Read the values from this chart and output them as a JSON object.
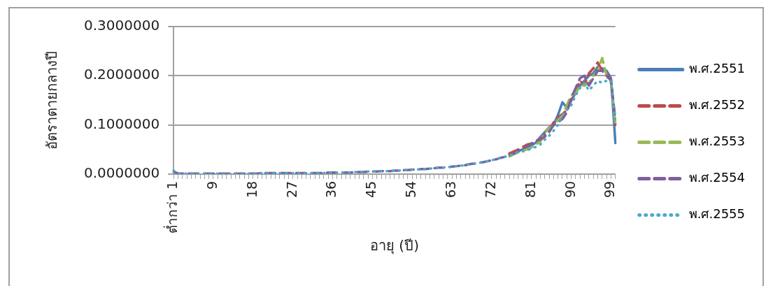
{
  "chart_data": {
    "type": "line",
    "ylabel": "อัตราตายกลางปี",
    "xlabel": "อายุ (ปี)",
    "categories": [
      "ต่ำกว่า 1",
      null,
      null,
      null,
      null,
      null,
      null,
      null,
      null,
      "9",
      null,
      null,
      null,
      null,
      null,
      null,
      null,
      null,
      "18",
      null,
      null,
      null,
      null,
      null,
      null,
      null,
      null,
      "27",
      null,
      null,
      null,
      null,
      null,
      null,
      null,
      null,
      "36",
      null,
      null,
      null,
      null,
      null,
      null,
      null,
      null,
      "45",
      null,
      null,
      null,
      null,
      null,
      null,
      null,
      null,
      "54",
      null,
      null,
      null,
      null,
      null,
      null,
      null,
      null,
      "63",
      null,
      null,
      null,
      null,
      null,
      null,
      null,
      null,
      "72",
      null,
      null,
      null,
      null,
      null,
      null,
      null,
      null,
      "81",
      null,
      null,
      null,
      null,
      null,
      null,
      null,
      null,
      "90",
      null,
      null,
      null,
      null,
      null,
      null,
      null,
      null,
      "99",
      null
    ],
    "series": [
      {
        "name": "พ.ศ.2551",
        "color": "#4a7ebb",
        "line_style": "solid",
        "values": [
          null,
          null,
          null,
          null,
          null,
          null,
          null,
          null,
          null,
          null,
          null,
          null,
          null,
          null,
          null,
          null,
          null,
          null,
          null,
          null,
          null,
          null,
          null,
          null,
          null,
          null,
          null,
          null,
          null,
          null,
          null,
          null,
          null,
          null,
          null,
          null,
          null,
          null,
          null,
          null,
          null,
          null,
          null,
          null,
          null,
          null,
          null,
          null,
          null,
          null,
          null,
          null,
          null,
          null,
          null,
          null,
          null,
          null,
          null,
          null,
          null,
          null,
          null,
          null,
          null,
          null,
          null,
          null,
          null,
          null,
          null,
          null,
          null,
          null,
          null,
          null,
          0.04,
          0.044,
          0.047,
          0.05,
          0.054,
          0.058,
          0.064,
          0.075,
          0.085,
          0.095,
          0.1,
          0.12,
          0.146,
          0.135,
          0.15,
          0.165,
          0.18,
          0.19,
          0.2,
          0.205,
          0.218,
          0.215,
          0.21,
          0.195,
          0.063
        ]
      },
      {
        "name": "พ.ศ.2552",
        "color": "#be4b48",
        "line_style": "dashed",
        "values": [
          null,
          null,
          null,
          null,
          null,
          null,
          null,
          null,
          null,
          null,
          null,
          null,
          null,
          null,
          null,
          null,
          null,
          null,
          null,
          null,
          null,
          null,
          null,
          null,
          null,
          null,
          null,
          null,
          null,
          null,
          null,
          null,
          null,
          null,
          null,
          null,
          null,
          null,
          null,
          null,
          null,
          null,
          null,
          null,
          null,
          null,
          null,
          null,
          null,
          null,
          null,
          null,
          null,
          null,
          null,
          null,
          null,
          null,
          null,
          null,
          null,
          null,
          null,
          null,
          null,
          null,
          null,
          null,
          null,
          null,
          null,
          null,
          null,
          null,
          null,
          null,
          0.042,
          0.046,
          0.05,
          0.055,
          0.06,
          0.062,
          0.066,
          0.072,
          0.08,
          0.09,
          0.105,
          0.115,
          0.122,
          0.13,
          0.15,
          0.17,
          0.19,
          0.18,
          0.205,
          0.215,
          0.227,
          0.21,
          0.205,
          0.19,
          0.1
        ]
      },
      {
        "name": "พ.ศ.2553",
        "color": "#98b954",
        "line_style": "dashed",
        "values": [
          null,
          null,
          null,
          null,
          null,
          null,
          null,
          null,
          null,
          null,
          null,
          null,
          null,
          null,
          null,
          null,
          null,
          null,
          null,
          null,
          null,
          null,
          null,
          null,
          null,
          null,
          null,
          null,
          null,
          null,
          null,
          null,
          null,
          null,
          null,
          null,
          null,
          null,
          null,
          null,
          null,
          null,
          null,
          null,
          null,
          null,
          null,
          null,
          null,
          null,
          null,
          null,
          null,
          null,
          null,
          null,
          null,
          null,
          null,
          null,
          null,
          null,
          null,
          null,
          null,
          null,
          null,
          null,
          null,
          null,
          null,
          null,
          null,
          null,
          null,
          null,
          0.036,
          0.04,
          0.044,
          0.048,
          0.05,
          0.054,
          0.06,
          0.066,
          0.083,
          0.094,
          0.098,
          0.11,
          0.118,
          0.14,
          0.16,
          0.165,
          0.18,
          0.18,
          0.185,
          0.2,
          0.21,
          0.236,
          0.2,
          0.185,
          0.1
        ]
      },
      {
        "name": "พ.ศ.2554",
        "color": "#7d60a0",
        "line_style": "dashed",
        "values": [
          0.005,
          0.001,
          0.001,
          0.001,
          0.001,
          0.001,
          0.001,
          0.001,
          0.001,
          0.001,
          0.001,
          0.001,
          0.001,
          0.001,
          0.001,
          0.001,
          0.001,
          0.001,
          0.001,
          0.001,
          0.002,
          0.002,
          0.002,
          0.002,
          0.002,
          0.002,
          0.002,
          0.002,
          0.002,
          0.002,
          0.002,
          0.002,
          0.002,
          0.002,
          0.002,
          0.003,
          0.003,
          0.003,
          0.003,
          0.003,
          0.003,
          0.004,
          0.004,
          0.004,
          0.005,
          0.005,
          0.005,
          0.006,
          0.006,
          0.006,
          0.007,
          0.007,
          0.008,
          0.008,
          0.009,
          0.009,
          0.01,
          0.01,
          0.011,
          0.012,
          0.013,
          0.013,
          0.014,
          0.015,
          0.016,
          0.017,
          0.018,
          0.02,
          0.021,
          0.023,
          0.024,
          0.026,
          0.028,
          0.03,
          0.033,
          0.035,
          0.038,
          0.042,
          0.046,
          0.052,
          0.056,
          0.062,
          0.068,
          0.07,
          0.076,
          0.085,
          0.1,
          0.105,
          0.112,
          0.125,
          0.155,
          0.175,
          0.195,
          0.2,
          0.18,
          0.195,
          0.21,
          0.21,
          0.2,
          0.19,
          0.11
        ]
      },
      {
        "name": "พ.ศ.2555",
        "color": "#4bacc6",
        "line_style": "dotted",
        "values": [
          0.007,
          0.001,
          0.001,
          0.001,
          0.001,
          0.001,
          0.001,
          0.001,
          0.001,
          0.001,
          0.001,
          0.001,
          0.001,
          0.001,
          0.001,
          0.001,
          0.001,
          0.001,
          0.001,
          0.001,
          0.002,
          0.002,
          0.002,
          0.002,
          0.002,
          0.002,
          0.002,
          0.002,
          0.002,
          0.002,
          0.002,
          0.002,
          0.002,
          0.002,
          0.002,
          0.003,
          0.003,
          0.003,
          0.003,
          0.003,
          0.003,
          0.004,
          0.004,
          0.004,
          0.005,
          0.005,
          0.005,
          0.006,
          0.006,
          0.006,
          0.007,
          0.007,
          0.008,
          0.008,
          0.009,
          0.009,
          0.01,
          0.01,
          0.011,
          0.012,
          0.013,
          0.013,
          0.014,
          0.015,
          0.016,
          0.017,
          0.018,
          0.02,
          0.021,
          0.023,
          0.024,
          0.026,
          0.028,
          0.03,
          0.033,
          0.035,
          0.038,
          0.041,
          0.045,
          0.046,
          0.048,
          0.052,
          0.055,
          0.06,
          0.07,
          0.078,
          0.088,
          0.1,
          0.12,
          0.13,
          0.14,
          0.16,
          0.175,
          0.185,
          0.17,
          0.18,
          0.19,
          0.185,
          0.19,
          0.19,
          0.105
        ]
      }
    ],
    "ylim": [
      0,
      0.3
    ],
    "yticks": [
      {
        "value": 0,
        "label": "0.0000000"
      },
      {
        "value": 0.1,
        "label": "0.1000000"
      },
      {
        "value": 0.2,
        "label": "0.2000000"
      },
      {
        "value": 0.3,
        "label": "0.3000000"
      }
    ],
    "grid": "y",
    "legend": "right",
    "marker": "none"
  }
}
